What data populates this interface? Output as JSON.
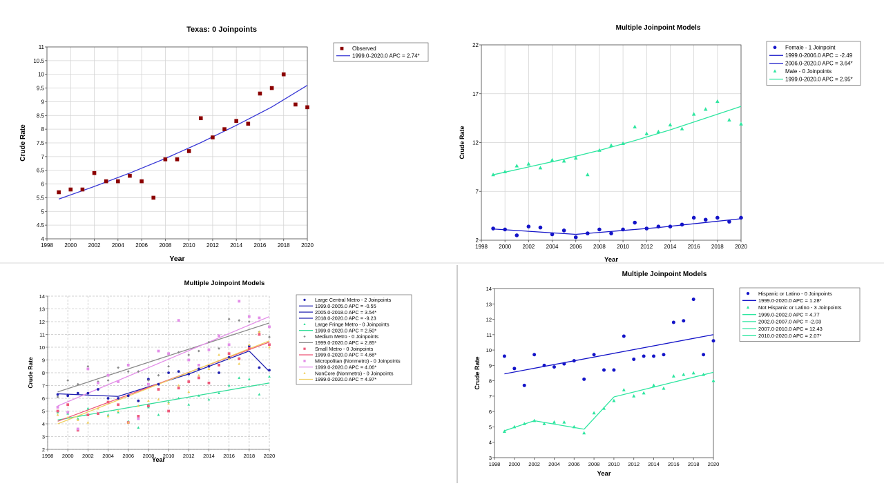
{
  "chart_data": [
    {
      "type": "scatter",
      "title": "Texas: 0 Joinpoints",
      "xlabel": "Year",
      "ylabel": "Crude Rate",
      "xlim": [
        1998,
        2020
      ],
      "ylim": [
        4,
        11
      ],
      "xticks": [
        "1998",
        "2000",
        "2002",
        "2004",
        "2006",
        "2008",
        "2010",
        "2012",
        "2014",
        "2016",
        "2018",
        "2020"
      ],
      "yticks": [
        "4",
        "4.5",
        "5",
        "5.5",
        "6",
        "6.5",
        "7",
        "7.5",
        "8",
        "8.5",
        "9",
        "9.5",
        "10",
        "10.5",
        "11"
      ],
      "grid": true,
      "legend_position": "right",
      "series": [
        {
          "name": "Observed",
          "kind": "points",
          "marker": "square",
          "color": "#8b0000",
          "x": [
            1999,
            2000,
            2001,
            2002,
            2003,
            2004,
            2005,
            2006,
            2007,
            2008,
            2009,
            2010,
            2011,
            2012,
            2013,
            2014,
            2015,
            2016,
            2017,
            2018,
            2019,
            2020
          ],
          "y": [
            5.7,
            5.8,
            5.8,
            6.4,
            6.1,
            6.1,
            6.3,
            6.1,
            5.5,
            6.9,
            6.9,
            7.2,
            8.4,
            7.7,
            8.0,
            8.3,
            8.2,
            9.3,
            9.5,
            10.0,
            8.9,
            8.8
          ]
        },
        {
          "name": "1999.0-2020.0 APC  = 2.74*",
          "kind": "line",
          "color": "#3a3ad6",
          "x": [
            1999,
            2002,
            2005,
            2008,
            2011,
            2014,
            2017,
            2020
          ],
          "y": [
            5.45,
            5.91,
            6.4,
            6.93,
            7.51,
            8.14,
            8.81,
            9.6
          ]
        }
      ]
    },
    {
      "type": "scatter",
      "title": "Multiple Joinpoint Models",
      "xlabel": "Year",
      "ylabel": "Crude Rate",
      "xlim": [
        1998,
        2020
      ],
      "ylim": [
        2,
        22
      ],
      "xticks": [
        "1998",
        "2000",
        "2002",
        "2004",
        "2006",
        "2008",
        "2010",
        "2012",
        "2014",
        "2016",
        "2018",
        "2020"
      ],
      "yticks": [
        "2",
        "7",
        "12",
        "17",
        "22"
      ],
      "grid": true,
      "legend_position": "right",
      "series": [
        {
          "name": "Female - 1 Joinpoint",
          "kind": "points",
          "marker": "circle",
          "color": "#1414c8",
          "x": [
            1999,
            2000,
            2001,
            2002,
            2003,
            2004,
            2005,
            2006,
            2007,
            2008,
            2009,
            2010,
            2011,
            2012,
            2013,
            2014,
            2015,
            2016,
            2017,
            2018,
            2019,
            2020
          ],
          "y": [
            3.2,
            3.1,
            2.5,
            3.4,
            3.3,
            2.6,
            3.0,
            2.3,
            2.7,
            3.1,
            2.7,
            3.1,
            3.8,
            3.2,
            3.4,
            3.4,
            3.6,
            4.3,
            4.1,
            4.3,
            3.9,
            4.3
          ]
        },
        {
          "name": "1999.0-2006.0 APC  = -2.49",
          "kind": "line",
          "color": "#1414c8",
          "x": [
            1999,
            2006
          ],
          "y": [
            3.15,
            2.6
          ]
        },
        {
          "name": "2006.0-2020.0 APC  = 3.64*",
          "kind": "line",
          "color": "#1414c8",
          "x": [
            2006,
            2013,
            2020
          ],
          "y": [
            2.6,
            3.3,
            4.2
          ]
        },
        {
          "name": "Male - 0 Joinpoints",
          "kind": "points",
          "marker": "triangle",
          "color": "#2ee6a0",
          "x": [
            1999,
            2000,
            2001,
            2002,
            2003,
            2004,
            2005,
            2006,
            2007,
            2008,
            2009,
            2010,
            2011,
            2012,
            2013,
            2014,
            2015,
            2016,
            2017,
            2018,
            2019,
            2020
          ],
          "y": [
            8.7,
            9.0,
            9.6,
            9.8,
            9.4,
            10.2,
            10.1,
            10.4,
            8.7,
            11.2,
            11.7,
            11.9,
            13.6,
            12.9,
            13.1,
            13.8,
            13.4,
            14.9,
            15.4,
            16.2,
            14.3,
            13.9
          ]
        },
        {
          "name": "1999.0-2020.0 APC  = 2.95*",
          "kind": "line",
          "color": "#2ee6a0",
          "x": [
            1999,
            2002,
            2005,
            2008,
            2011,
            2014,
            2017,
            2020
          ],
          "y": [
            8.7,
            9.5,
            10.3,
            11.2,
            12.2,
            13.3,
            14.5,
            15.7
          ]
        }
      ]
    },
    {
      "type": "scatter",
      "title": "Multiple Joinpoint Models",
      "xlabel": "Year",
      "ylabel": "Crude Rate",
      "xlim": [
        1998,
        2020
      ],
      "ylim": [
        2,
        14
      ],
      "xticks": [
        "1998",
        "2000",
        "2002",
        "2004",
        "2006",
        "2008",
        "2010",
        "2012",
        "2014",
        "2016",
        "2018",
        "2020"
      ],
      "yticks": [
        "2",
        "3",
        "4",
        "5",
        "6",
        "7",
        "8",
        "9",
        "10",
        "11",
        "12",
        "13",
        "14"
      ],
      "grid": true,
      "grid_style": "dashed",
      "legend_position": "right",
      "series": [
        {
          "name": "Large Central Metro - 2 Joinpoints",
          "kind": "points",
          "marker": "circle",
          "color": "#2020b0",
          "x": [
            1999,
            2000,
            2001,
            2002,
            2003,
            2004,
            2005,
            2006,
            2007,
            2008,
            2009,
            2010,
            2011,
            2012,
            2013,
            2014,
            2015,
            2016,
            2017,
            2018,
            2019,
            2020
          ],
          "y": [
            6.3,
            6.2,
            6.4,
            6.4,
            6.7,
            6.0,
            6.0,
            6.2,
            5.8,
            7.5,
            7.1,
            8.0,
            8.1,
            7.9,
            8.3,
            8.5,
            8.0,
            9.2,
            9.1,
            10.1,
            8.4,
            8.2
          ]
        },
        {
          "name": "1999.0-2005.0 APC  = -0.55",
          "kind": "line",
          "color": "#2020b0",
          "x": [
            1999,
            2005
          ],
          "y": [
            6.35,
            6.15
          ]
        },
        {
          "name": "2005.0-2018.0 APC  = 3.54*",
          "kind": "line",
          "color": "#2020b0",
          "x": [
            2005,
            2012,
            2018
          ],
          "y": [
            6.15,
            7.9,
            9.7
          ]
        },
        {
          "name": "2018.0-2020.0 APC  = -9.23",
          "kind": "line",
          "color": "#2020b0",
          "x": [
            2018,
            2020
          ],
          "y": [
            9.7,
            8.1
          ]
        },
        {
          "name": "Large Fringe Metro - 0 Joinpoints",
          "kind": "points",
          "marker": "triangle",
          "color": "#33dd99",
          "x": [
            1999,
            2000,
            2001,
            2002,
            2003,
            2004,
            2005,
            2006,
            2007,
            2008,
            2009,
            2010,
            2011,
            2012,
            2013,
            2014,
            2015,
            2016,
            2017,
            2018,
            2019,
            2020
          ],
          "y": [
            4.9,
            4.8,
            4.4,
            5.2,
            4.8,
            4.7,
            4.9,
            4.2,
            3.7,
            5.3,
            4.7,
            5.7,
            6.0,
            5.5,
            6.2,
            5.9,
            6.4,
            7.0,
            7.6,
            7.5,
            6.3,
            7.7
          ]
        },
        {
          "name": "1999.0-2020.0 APC  = 2.50*",
          "kind": "line",
          "color": "#33dd99",
          "x": [
            1999,
            2020
          ],
          "y": [
            4.3,
            7.2
          ]
        },
        {
          "name": "Medium Metro - 0 Joinpoints",
          "kind": "points",
          "marker": "diamond",
          "color": "#8a8a8a",
          "x": [
            1999,
            2000,
            2001,
            2002,
            2003,
            2004,
            2005,
            2006,
            2007,
            2008,
            2009,
            2010,
            2011,
            2012,
            2013,
            2014,
            2015,
            2016,
            2017,
            2018,
            2019,
            2020
          ],
          "y": [
            6.1,
            7.4,
            7.1,
            8.5,
            7.3,
            7.4,
            8.4,
            8.1,
            8.1,
            7.4,
            7.8,
            8.5,
            9.6,
            9.4,
            9.7,
            10.4,
            9.9,
            12.2,
            12.1,
            12.0,
            11.2,
            10.8
          ]
        },
        {
          "name": "1999.0-2020.0 APC  = 2.85*",
          "kind": "line",
          "color": "#8a8a8a",
          "x": [
            1999,
            2020
          ],
          "y": [
            6.5,
            11.9
          ]
        },
        {
          "name": "Small Metro - 0 Joinpoints",
          "kind": "points",
          "marker": "square",
          "color": "#ee5a7a",
          "x": [
            1999,
            2000,
            2001,
            2002,
            2003,
            2004,
            2005,
            2006,
            2007,
            2008,
            2009,
            2010,
            2011,
            2012,
            2013,
            2014,
            2015,
            2016,
            2017,
            2018,
            2019,
            2020
          ],
          "y": [
            5.0,
            5.5,
            3.5,
            4.7,
            4.8,
            5.7,
            5.5,
            4.1,
            4.6,
            5.4,
            6.7,
            5.0,
            6.8,
            7.3,
            7.6,
            7.2,
            8.6,
            9.5,
            9.1,
            9.9,
            11.0,
            10.2
          ]
        },
        {
          "name": "1999.0-2020.0 APC  = 4.68*",
          "kind": "line",
          "color": "#ee5a7a",
          "x": [
            1999,
            2020
          ],
          "y": [
            4.2,
            10.4
          ]
        },
        {
          "name": "Micropolitan (Nonmetro) - 0 Joinpoints",
          "kind": "points",
          "marker": "square",
          "color": "#e38ee8",
          "x": [
            1999,
            2000,
            2001,
            2002,
            2003,
            2004,
            2005,
            2006,
            2007,
            2008,
            2009,
            2010,
            2011,
            2012,
            2013,
            2014,
            2015,
            2016,
            2017,
            2018,
            2019,
            2020
          ],
          "y": [
            5.3,
            4.9,
            3.6,
            8.3,
            7.2,
            7.8,
            7.3,
            8.6,
            4.4,
            7.1,
            9.7,
            9.5,
            12.1,
            9.0,
            8.6,
            9.8,
            10.9,
            10.2,
            13.6,
            12.4,
            12.3,
            11.6
          ]
        },
        {
          "name": "1999.0-2020.0 APC  = 4.06*",
          "kind": "line",
          "color": "#e38ee8",
          "x": [
            1999,
            2020
          ],
          "y": [
            5.4,
            12.4
          ]
        },
        {
          "name": "NonCore (Nonmetro) - 0 Joinpoints",
          "kind": "points",
          "marker": "triangle",
          "color": "#f0d060",
          "x": [
            1999,
            2000,
            2001,
            2002,
            2003,
            2004,
            2005,
            2006,
            2007,
            2008,
            2009,
            2010,
            2011,
            2012,
            2013,
            2014,
            2015,
            2016,
            2017,
            2018,
            2019,
            2020
          ],
          "y": [
            4.7,
            4.5,
            4.3,
            4.1,
            5.2,
            4.6,
            5.0,
            4.1,
            5.4,
            5.8,
            5.9,
            5.6,
            7.0,
            6.5,
            7.8,
            8.3,
            9.4,
            9.1,
            8.7,
            10.2,
            11.2,
            10.0
          ]
        },
        {
          "name": "1999.0-2020.0 APC  = 4.97*",
          "kind": "line",
          "color": "#f0d060",
          "x": [
            1999,
            2020
          ],
          "y": [
            4.0,
            10.5
          ]
        }
      ]
    },
    {
      "type": "scatter",
      "title": "Multiple Joinpoint Models",
      "xlabel": "Year",
      "ylabel": "Crude Rate",
      "xlim": [
        1998,
        2020
      ],
      "ylim": [
        3,
        14
      ],
      "xticks": [
        "1998",
        "2000",
        "2002",
        "2004",
        "2006",
        "2008",
        "2010",
        "2012",
        "2014",
        "2016",
        "2018",
        "2020"
      ],
      "yticks": [
        "3",
        "4",
        "5",
        "6",
        "7",
        "8",
        "9",
        "10",
        "11",
        "12",
        "13",
        "14"
      ],
      "grid": false,
      "legend_position": "right",
      "series": [
        {
          "name": "Hispanic or Latino - 0 Joinpoints",
          "kind": "points",
          "marker": "circle",
          "color": "#1414c8",
          "x": [
            1999,
            2000,
            2001,
            2002,
            2003,
            2004,
            2005,
            2006,
            2007,
            2008,
            2009,
            2010,
            2011,
            2012,
            2013,
            2014,
            2015,
            2016,
            2017,
            2018,
            2019,
            2020
          ],
          "y": [
            9.6,
            8.8,
            7.7,
            9.7,
            9.0,
            8.9,
            9.1,
            9.3,
            8.1,
            9.7,
            8.7,
            8.7,
            10.9,
            9.4,
            9.6,
            9.6,
            9.7,
            11.8,
            11.9,
            13.3,
            9.7,
            10.6
          ]
        },
        {
          "name": "1999.0-2020.0 APC  = 1.28*",
          "kind": "line",
          "color": "#1414c8",
          "x": [
            1999,
            2020
          ],
          "y": [
            8.45,
            11.0
          ]
        },
        {
          "name": "Not Hispanic or Latino - 3 Joinpoints",
          "kind": "points",
          "marker": "triangle",
          "color": "#2ee6a0",
          "x": [
            1999,
            2000,
            2001,
            2002,
            2003,
            2004,
            2005,
            2006,
            2007,
            2008,
            2009,
            2010,
            2011,
            2012,
            2013,
            2014,
            2015,
            2016,
            2017,
            2018,
            2019,
            2020
          ],
          "y": [
            4.7,
            5.0,
            5.2,
            5.4,
            5.2,
            5.3,
            5.3,
            5.0,
            4.6,
            5.9,
            6.2,
            6.7,
            7.4,
            7.0,
            7.2,
            7.7,
            7.5,
            8.3,
            8.4,
            8.5,
            8.4,
            8.0
          ]
        },
        {
          "name": "1999.0-2002.0 APC  = 4.77",
          "kind": "line",
          "color": "#2ee6a0",
          "x": [
            1999,
            2002
          ],
          "y": [
            4.75,
            5.4
          ]
        },
        {
          "name": "2002.0-2007.0 APC  = -2.03",
          "kind": "line",
          "color": "#2ee6a0",
          "x": [
            2002,
            2007
          ],
          "y": [
            5.4,
            4.85
          ]
        },
        {
          "name": "2007.0-2010.0 APC  = 12.43",
          "kind": "line",
          "color": "#2ee6a0",
          "x": [
            2007,
            2010
          ],
          "y": [
            4.85,
            6.95
          ]
        },
        {
          "name": "2010.0-2020.0 APC  = 2.07*",
          "kind": "line",
          "color": "#2ee6a0",
          "x": [
            2010,
            2020
          ],
          "y": [
            6.95,
            8.55
          ]
        }
      ]
    }
  ]
}
